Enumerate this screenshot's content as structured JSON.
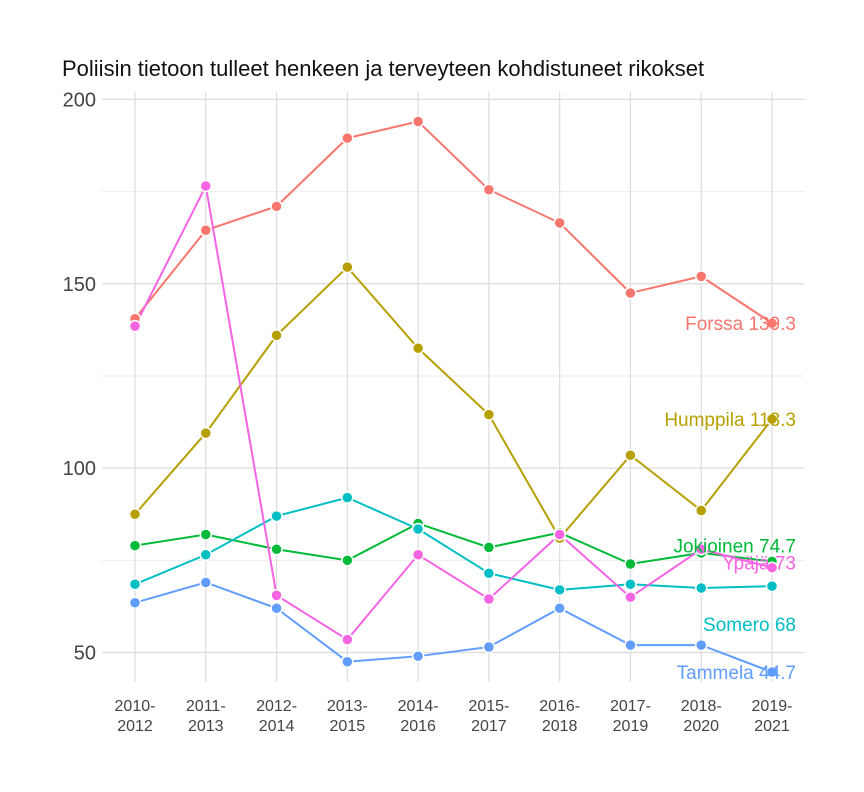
{
  "chart_data": {
    "type": "line",
    "title": "Poliisin tietoon tulleet henkeen ja terveyteen kohdistuneet rikokset",
    "xlabel": "",
    "ylabel": "",
    "x": [
      "2010-\n2012",
      "2011-\n2013",
      "2012-\n2014",
      "2013-\n2015",
      "2014-\n2016",
      "2015-\n2017",
      "2016-\n2018",
      "2017-\n2019",
      "2018-\n2020",
      "2019-\n2021"
    ],
    "ylim": [
      42,
      202
    ],
    "yticks": [
      "50",
      "100",
      "150",
      "200"
    ],
    "grid": true,
    "legend": "none",
    "series": [
      {
        "name": "Forssa",
        "end_label": "Forssa 139.3",
        "color": "#F8766D",
        "values": [
          140.5,
          164.5,
          171,
          189.5,
          194,
          175.5,
          166.5,
          147.5,
          152,
          139.3
        ]
      },
      {
        "name": "Humppila",
        "end_label": "Humppila 113.3",
        "color": "#B79F00",
        "values": [
          87.5,
          109.5,
          136,
          154.5,
          132.5,
          114.5,
          81,
          103.5,
          88.5,
          113.3
        ]
      },
      {
        "name": "Jokioinen",
        "end_label": "Jokioinen 74.7",
        "color": "#00BA38",
        "values": [
          79,
          82,
          78,
          75,
          85,
          78.5,
          82.5,
          74,
          77,
          74.7
        ]
      },
      {
        "name": "Somero",
        "end_label": "Somero 68",
        "color": "#00BFC4",
        "values": [
          68.5,
          76.5,
          87,
          92,
          83.5,
          71.5,
          67,
          68.5,
          67.5,
          68
        ]
      },
      {
        "name": "Tammela",
        "end_label": "Tammela 44.7",
        "color": "#619CFF",
        "values": [
          63.5,
          69,
          62,
          47.5,
          49,
          51.5,
          62,
          52,
          52,
          44.7
        ]
      },
      {
        "name": "Ypäjä",
        "end_label": "Ypäjä 73",
        "color": "#F564E3",
        "values": [
          138.5,
          176.5,
          65.5,
          53.5,
          76.5,
          64.5,
          82,
          65,
          78,
          73
        ]
      }
    ]
  }
}
